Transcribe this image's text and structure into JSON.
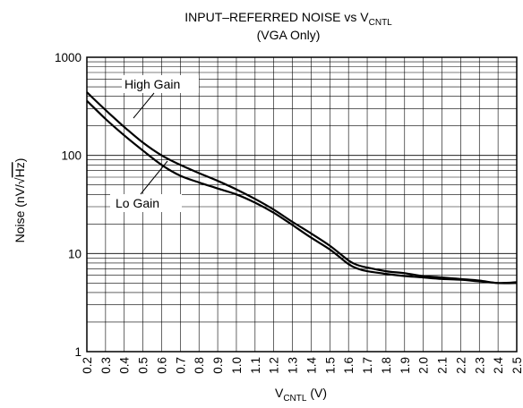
{
  "chart_data": {
    "type": "line",
    "title": {
      "main": "INPUT–REFERRED NOISE vs V",
      "main_sub": "CNTL",
      "line2": "(VGA Only)"
    },
    "xlabel": {
      "main": "V",
      "sub": "CNTL",
      "unit": " (V)"
    },
    "ylabel": {
      "prefix": "Noise (nV/",
      "sqrt": "√",
      "root": "Hz",
      "suffix": ")"
    },
    "xlim": [
      0.2,
      2.5
    ],
    "ylim": [
      1,
      1000
    ],
    "yscale": "log",
    "grid": true,
    "x_ticks": [
      "0.2",
      "0.3",
      "0.4",
      "0.5",
      "0.6",
      "0.7",
      "0.8",
      "0.9",
      "1.0",
      "1.1",
      "1.2",
      "1.3",
      "1.4",
      "1.5",
      "1.6",
      "1.7",
      "1.8",
      "1.9",
      "2.0",
      "2.1",
      "2.2",
      "2.3",
      "2.4",
      "2.5"
    ],
    "y_ticks": [
      "1",
      "10",
      "100",
      "1000"
    ],
    "series": [
      {
        "name": "High Gain",
        "x": [
          0.2,
          0.3,
          0.4,
          0.5,
          0.6,
          0.7,
          0.8,
          0.9,
          1.0,
          1.1,
          1.2,
          1.3,
          1.4,
          1.5,
          1.6,
          1.65,
          1.7,
          1.8,
          1.9,
          2.0,
          2.1,
          2.2,
          2.3,
          2.4,
          2.5
        ],
        "y": [
          440,
          290,
          195,
          135,
          100,
          80,
          66,
          55,
          45,
          36,
          28,
          21,
          16,
          12,
          8.5,
          7.6,
          7.2,
          6.6,
          6.3,
          5.9,
          5.7,
          5.5,
          5.3,
          5.0,
          5.1
        ]
      },
      {
        "name": "Lo Gain",
        "x": [
          0.2,
          0.3,
          0.4,
          0.5,
          0.6,
          0.7,
          0.8,
          0.9,
          1.0,
          1.1,
          1.2,
          1.3,
          1.4,
          1.5,
          1.6,
          1.65,
          1.7,
          1.8,
          1.9,
          2.0,
          2.1,
          2.2,
          2.3,
          2.4,
          2.5
        ],
        "y": [
          360,
          235,
          160,
          112,
          80,
          62,
          53,
          46,
          40,
          33,
          26,
          19.5,
          14.5,
          11,
          7.8,
          7.0,
          6.6,
          6.2,
          5.9,
          5.7,
          5.5,
          5.4,
          5.2,
          5.0,
          5.0
        ]
      }
    ],
    "annotations": [
      "High Gain",
      "Lo Gain"
    ]
  }
}
